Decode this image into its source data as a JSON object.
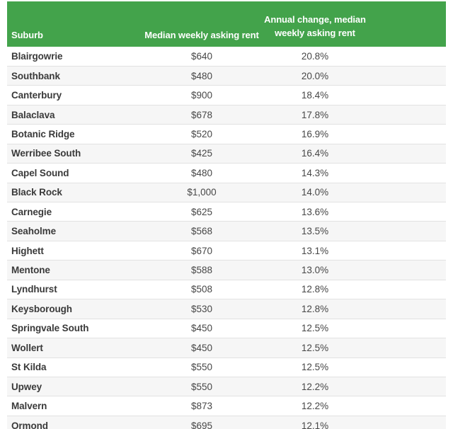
{
  "chart_data": {
    "type": "table",
    "title": "",
    "columns": [
      "Suburb",
      "Median weekly asking rent",
      "Annual change, median\nweekly asking rent"
    ],
    "rows": [
      {
        "suburb": "Blairgowrie",
        "rent": "$640",
        "change": "20.8%"
      },
      {
        "suburb": "Southbank",
        "rent": "$480",
        "change": "20.0%"
      },
      {
        "suburb": "Canterbury",
        "rent": "$900",
        "change": "18.4%"
      },
      {
        "suburb": "Balaclava",
        "rent": "$678",
        "change": "17.8%"
      },
      {
        "suburb": "Botanic Ridge",
        "rent": "$520",
        "change": "16.9%"
      },
      {
        "suburb": "Werribee South",
        "rent": "$425",
        "change": "16.4%"
      },
      {
        "suburb": "Capel Sound",
        "rent": "$480",
        "change": "14.3%"
      },
      {
        "suburb": "Black Rock",
        "rent": "$1,000",
        "change": "14.0%"
      },
      {
        "suburb": "Carnegie",
        "rent": "$625",
        "change": "13.6%"
      },
      {
        "suburb": "Seaholme",
        "rent": "$568",
        "change": "13.5%"
      },
      {
        "suburb": "Highett",
        "rent": "$670",
        "change": "13.1%"
      },
      {
        "suburb": "Mentone",
        "rent": "$588",
        "change": "13.0%"
      },
      {
        "suburb": "Lyndhurst",
        "rent": "$508",
        "change": "12.8%"
      },
      {
        "suburb": "Keysborough",
        "rent": "$530",
        "change": "12.8%"
      },
      {
        "suburb": "Springvale South",
        "rent": "$450",
        "change": "12.5%"
      },
      {
        "suburb": "Wollert",
        "rent": "$450",
        "change": "12.5%"
      },
      {
        "suburb": "St Kilda",
        "rent": "$550",
        "change": "12.5%"
      },
      {
        "suburb": "Upwey",
        "rent": "$550",
        "change": "12.2%"
      },
      {
        "suburb": "Malvern",
        "rent": "$873",
        "change": "12.2%"
      },
      {
        "suburb": "Ormond",
        "rent": "$695",
        "change": "12.1%"
      }
    ]
  },
  "colors": {
    "header_bg": "#43a34b",
    "header_text": "#ffffff",
    "row_bg": "#ffffff",
    "row_alt_bg": "#f6f6f6",
    "row_border": "#e2e2e2",
    "text": "#3d3d3d"
  }
}
